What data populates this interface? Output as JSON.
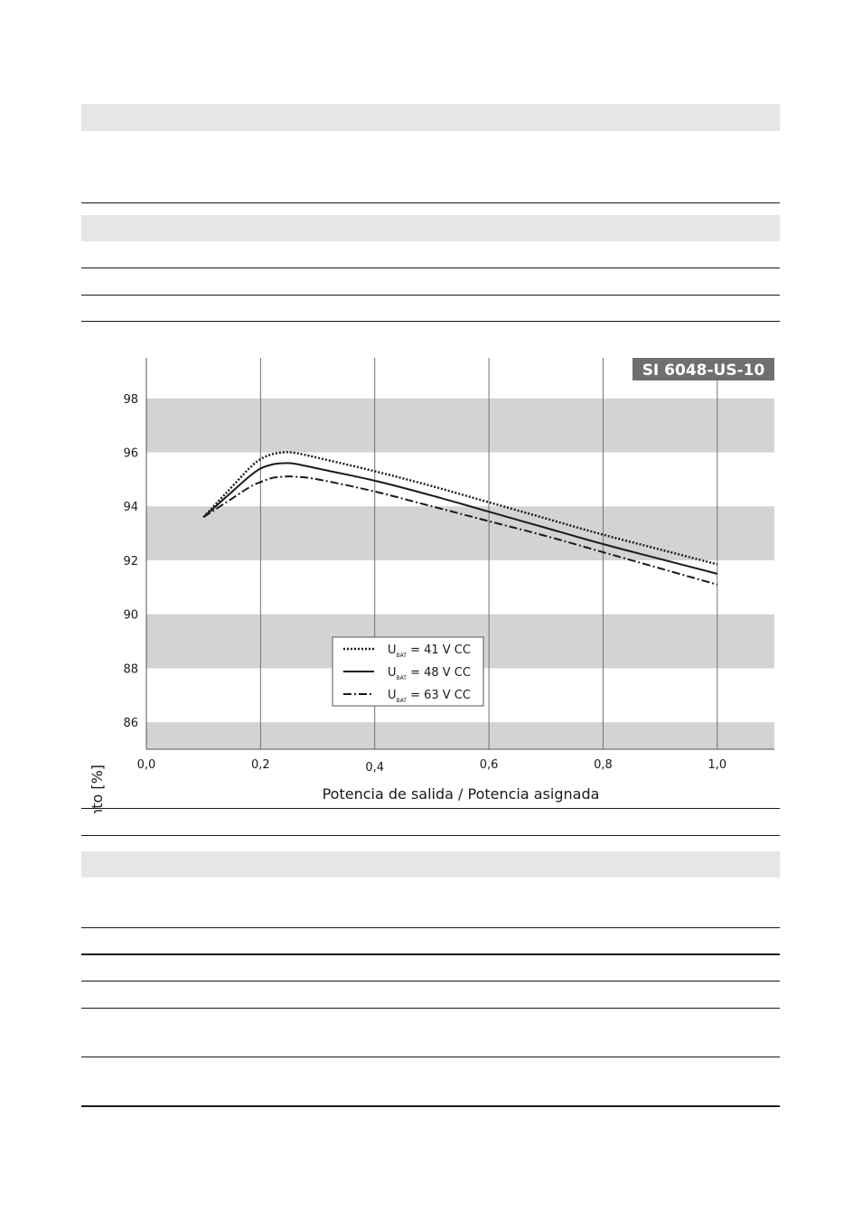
{
  "chart_data": {
    "type": "line",
    "title": "SI 6048-US-10",
    "xlabel": "Potencia de salida / Potencia asignada",
    "ylabel": "Coeficiente de rendimiento [%]",
    "xlim": [
      0.0,
      1.1
    ],
    "ylim": [
      85,
      99.5
    ],
    "x_ticks": [
      {
        "value": 0.0,
        "label": "0,0"
      },
      {
        "value": 0.2,
        "label": "0,2"
      },
      {
        "value": 0.4,
        "label": "0,4"
      },
      {
        "value": 0.6,
        "label": "0,6"
      },
      {
        "value": 0.8,
        "label": "0,8"
      },
      {
        "value": 1.0,
        "label": "1,0"
      }
    ],
    "y_ticks": [
      {
        "value": 86,
        "label": "86"
      },
      {
        "value": 88,
        "label": "88"
      },
      {
        "value": 90,
        "label": "90"
      },
      {
        "value": 92,
        "label": "92"
      },
      {
        "value": 94,
        "label": "94"
      },
      {
        "value": 96,
        "label": "96"
      },
      {
        "value": 98,
        "label": "98"
      }
    ],
    "shaded_bands": [
      [
        85,
        86
      ],
      [
        88,
        90
      ],
      [
        92,
        94
      ],
      [
        96,
        98
      ]
    ],
    "grid": "vertical",
    "legend_position": "bottom-center",
    "series": [
      {
        "name": "U_BAT = 41 V CC",
        "legend_main": "U",
        "legend_sub": "BAT",
        "legend_rest": " = 41 V CC",
        "style": "dotted",
        "x": [
          0.1,
          0.14,
          0.18,
          0.2,
          0.22,
          0.24,
          0.26,
          0.3,
          0.4,
          0.5,
          0.6,
          0.7,
          0.8,
          0.9,
          1.0
        ],
        "y": [
          93.6,
          94.5,
          95.4,
          95.75,
          95.93,
          96.0,
          95.98,
          95.8,
          95.3,
          94.75,
          94.15,
          93.55,
          92.95,
          92.4,
          91.85
        ]
      },
      {
        "name": "U_BAT = 48 V CC",
        "legend_main": "U",
        "legend_sub": "BAT",
        "legend_rest": " = 48 V CC",
        "style": "solid",
        "x": [
          0.1,
          0.14,
          0.18,
          0.2,
          0.22,
          0.24,
          0.26,
          0.3,
          0.4,
          0.5,
          0.6,
          0.7,
          0.8,
          0.9,
          1.0
        ],
        "y": [
          93.6,
          94.35,
          95.1,
          95.4,
          95.55,
          95.6,
          95.58,
          95.4,
          94.95,
          94.4,
          93.8,
          93.2,
          92.6,
          92.05,
          91.5
        ]
      },
      {
        "name": "U_BAT = 63 V CC",
        "legend_main": "U",
        "legend_sub": "BAT",
        "legend_rest": " = 63 V CC",
        "style": "dashdot",
        "x": [
          0.1,
          0.14,
          0.18,
          0.2,
          0.22,
          0.24,
          0.26,
          0.3,
          0.4,
          0.5,
          0.6,
          0.7,
          0.8,
          0.9,
          1.0
        ],
        "y": [
          93.6,
          94.15,
          94.7,
          94.9,
          95.05,
          95.1,
          95.1,
          95.0,
          94.55,
          94.0,
          93.45,
          92.9,
          92.3,
          91.7,
          91.1
        ]
      }
    ]
  }
}
